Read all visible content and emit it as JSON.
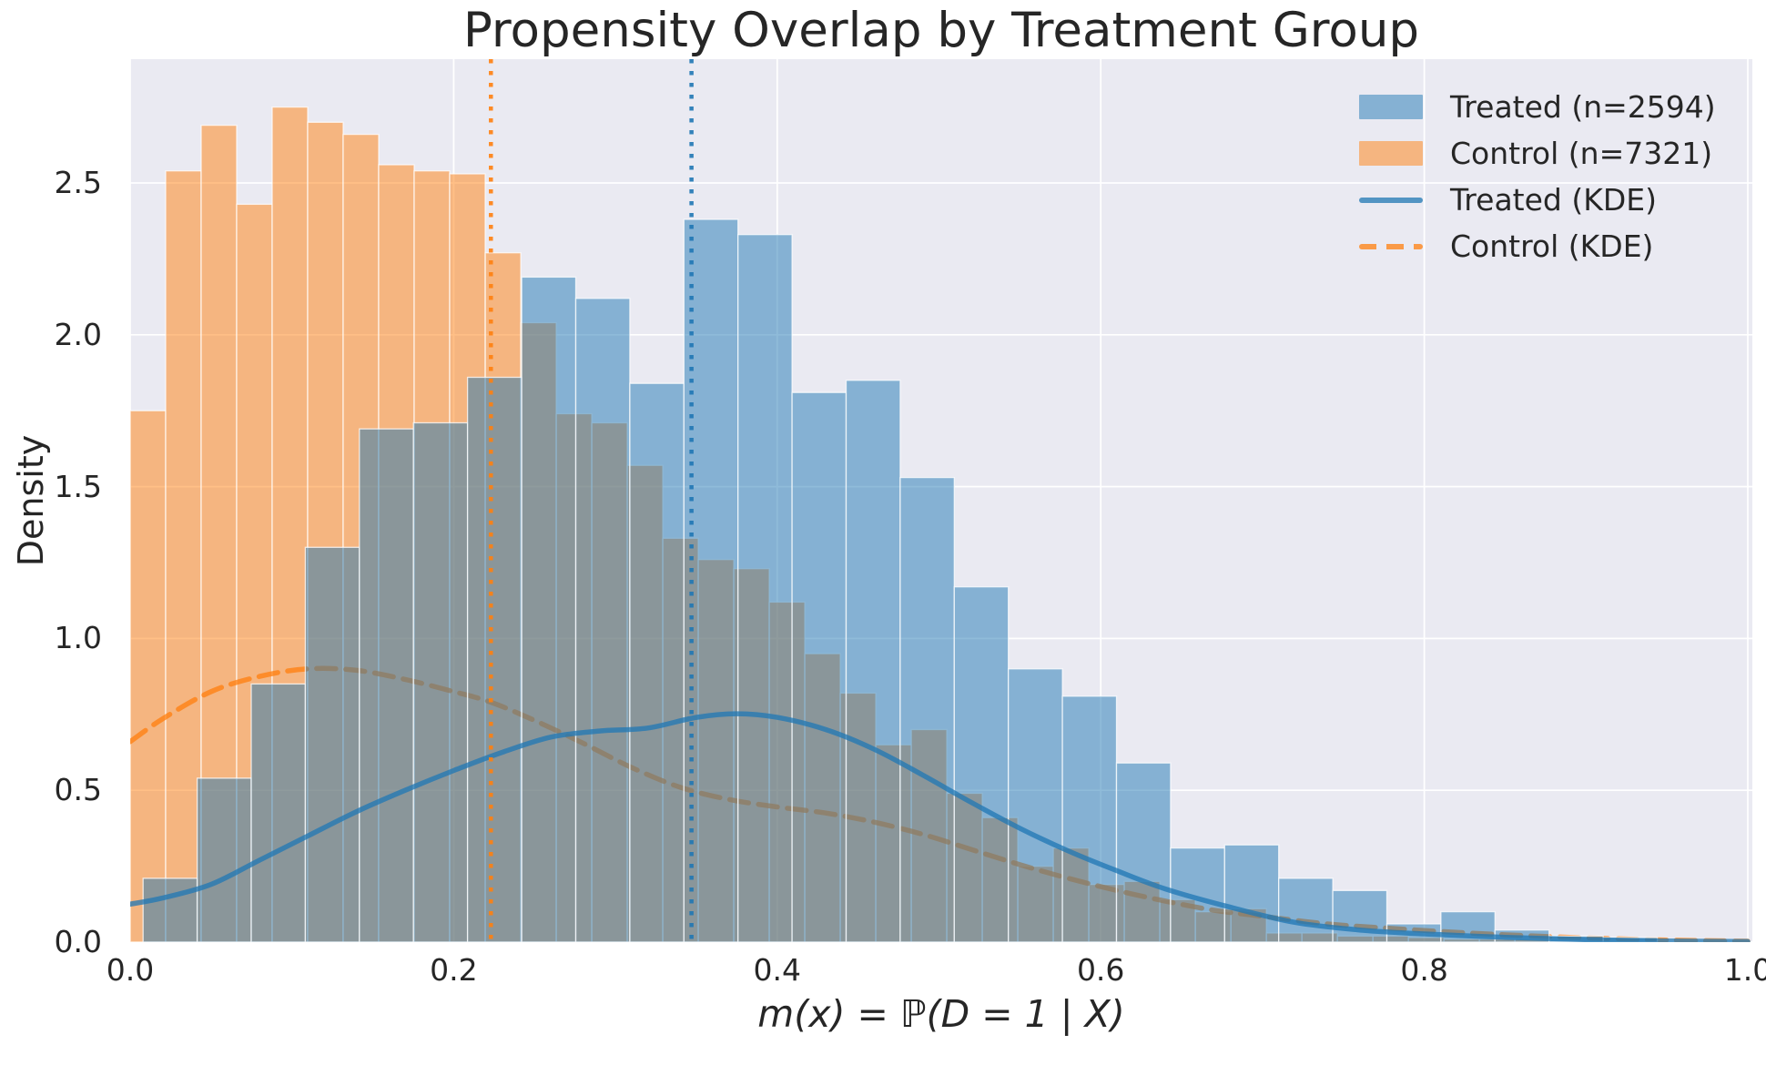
{
  "figure": {
    "background": "#ffffff",
    "plot_background": "#eaeaf2",
    "grid_color": "#ffffff",
    "text_color": "#262626"
  },
  "chart_data": {
    "type": "histogram",
    "subtype": "overlaid histograms with KDE curves and mean lines",
    "title": "Propensity Overlap by Treatment Group",
    "xlabel": "m(x) = ℙ(D = 1 | X)",
    "ylabel": "Density",
    "xlim": [
      0,
      1.003
    ],
    "ylim": [
      0,
      2.907
    ],
    "grid": true,
    "legend_position": "upper right",
    "xticks": [
      0.0,
      0.2,
      0.4,
      0.6,
      0.8,
      1.0
    ],
    "xtick_labels": [
      "0.0",
      "0.2",
      "0.4",
      "0.6",
      "0.8",
      "1.0"
    ],
    "yticks": [
      0.0,
      0.5,
      1.0,
      1.5,
      2.0,
      2.5
    ],
    "ytick_labels": [
      "0.0",
      "0.5",
      "1.0",
      "1.5",
      "2.0",
      "2.5"
    ],
    "treated_mean_line_x": 0.347,
    "control_mean_line_x": 0.223,
    "series": [
      {
        "name": "Control (n=7321)",
        "kind": "histogram",
        "color": "#ff7f0e",
        "fill_alpha": 0.5,
        "edge_color": "#ffffff",
        "bin_start": 0.0,
        "bin_width": 0.02195,
        "densities": [
          1.75,
          2.54,
          2.69,
          2.43,
          2.75,
          2.7,
          2.66,
          2.56,
          2.54,
          2.53,
          2.27,
          2.04,
          1.74,
          1.71,
          1.57,
          1.33,
          1.26,
          1.23,
          1.12,
          0.95,
          0.82,
          0.65,
          0.7,
          0.49,
          0.41,
          0.25,
          0.31,
          0.19,
          0.2,
          0.14,
          0.1,
          0.11,
          0.03,
          0.03,
          0.02,
          0.02,
          0.015,
          0.01,
          0.01,
          0.01
        ]
      },
      {
        "name": "Control (KDE)",
        "kind": "kde",
        "color": "#ff7f0e",
        "line_alpha": 0.75,
        "line_style": "dashed",
        "x": [
          0.0,
          0.02,
          0.05,
          0.08,
          0.11,
          0.14,
          0.17,
          0.2,
          0.223,
          0.25,
          0.28,
          0.31,
          0.34,
          0.37,
          0.4,
          0.43,
          0.46,
          0.49,
          0.52,
          0.55,
          0.58,
          0.61,
          0.64,
          0.67,
          0.7,
          0.74,
          0.78,
          0.82,
          0.86,
          0.9,
          0.95,
          1.0
        ],
        "y": [
          0.66,
          0.735,
          0.825,
          0.875,
          0.9,
          0.895,
          0.865,
          0.825,
          0.79,
          0.73,
          0.655,
          0.575,
          0.51,
          0.47,
          0.445,
          0.425,
          0.395,
          0.355,
          0.305,
          0.255,
          0.21,
          0.17,
          0.135,
          0.105,
          0.085,
          0.06,
          0.045,
          0.032,
          0.022,
          0.014,
          0.007,
          0.003
        ]
      },
      {
        "name": "Treated (n=2594)",
        "kind": "histogram",
        "color": "#1f77b4",
        "fill_alpha": 0.5,
        "edge_color": "#ffffff",
        "bin_start": 0.008,
        "bin_width": 0.03343,
        "densities": [
          0.21,
          0.54,
          0.85,
          1.3,
          1.69,
          1.71,
          1.86,
          2.19,
          2.12,
          1.84,
          2.38,
          2.33,
          1.81,
          1.85,
          1.53,
          1.17,
          0.9,
          0.81,
          0.59,
          0.31,
          0.32,
          0.21,
          0.17,
          0.06,
          0.1,
          0.04,
          0.02,
          0.015
        ]
      },
      {
        "name": "Treated (KDE)",
        "kind": "kde",
        "color": "#1f77b4",
        "line_alpha": 0.75,
        "line_style": "solid",
        "x": [
          0.0,
          0.02,
          0.05,
          0.08,
          0.11,
          0.14,
          0.17,
          0.2,
          0.23,
          0.26,
          0.29,
          0.32,
          0.35,
          0.375,
          0.4,
          0.43,
          0.46,
          0.49,
          0.52,
          0.55,
          0.58,
          0.61,
          0.64,
          0.68,
          0.72,
          0.76,
          0.8,
          0.85,
          0.9,
          0.95,
          1.0
        ],
        "y": [
          0.125,
          0.145,
          0.19,
          0.27,
          0.35,
          0.43,
          0.5,
          0.565,
          0.625,
          0.675,
          0.695,
          0.705,
          0.74,
          0.752,
          0.74,
          0.7,
          0.635,
          0.55,
          0.46,
          0.375,
          0.3,
          0.235,
          0.175,
          0.115,
          0.065,
          0.04,
          0.027,
          0.016,
          0.008,
          0.004,
          0.002
        ]
      }
    ],
    "vlines": [
      {
        "id": "control-mean",
        "x": 0.223,
        "color": "#ff7f0e",
        "style": "dotted",
        "alpha": 0.9
      },
      {
        "id": "treated-mean",
        "x": 0.347,
        "color": "#1f77b4",
        "style": "dotted",
        "alpha": 0.9
      }
    ],
    "legend": {
      "items": [
        {
          "label": "Treated (n=2594)",
          "swatch": "patch",
          "display_color": "#85b1d3"
        },
        {
          "label": "Control (n=7321)",
          "swatch": "patch",
          "display_color": "#f5b580"
        },
        {
          "label": "Treated (KDE)",
          "swatch": "line-solid",
          "display_color": "#5294c3"
        },
        {
          "label": "Control (KDE)",
          "swatch": "line-dashed",
          "display_color": "#fa9a47"
        }
      ]
    }
  }
}
